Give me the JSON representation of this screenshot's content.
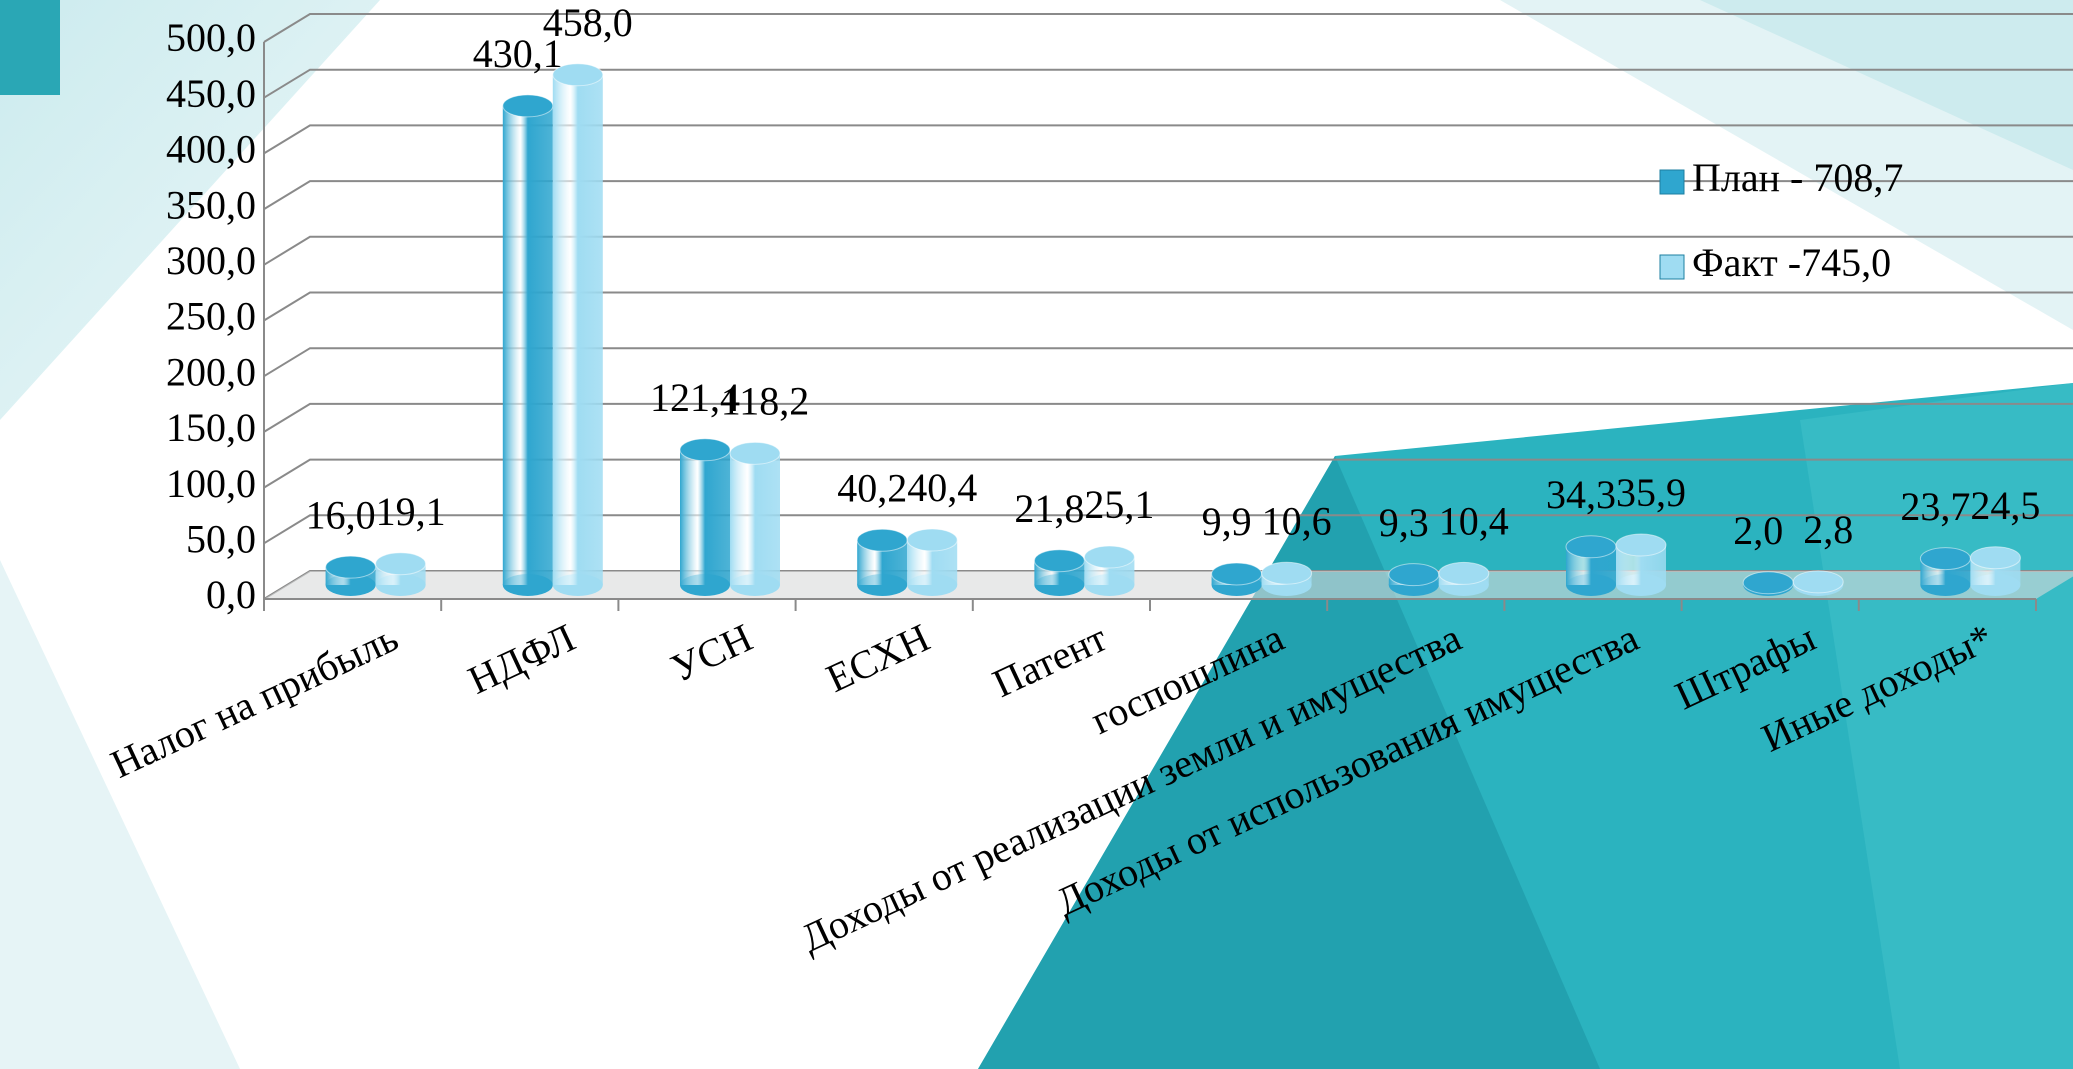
{
  "chart_data": {
    "type": "bar",
    "categories": [
      "Налог на прибыль",
      "НДФЛ",
      "УСН",
      "ЕСХН",
      "Патент",
      "госпошлина",
      "Доходы от реализации земли и имущества",
      "Доходы от использования имущества",
      "Штрафы",
      "Иные доходы*"
    ],
    "series": [
      {
        "name": "План - 708,7",
        "color": "#2fa6cf",
        "values": [
          16.0,
          430.1,
          121.4,
          40.2,
          21.8,
          9.9,
          9.3,
          34.3,
          2.0,
          23.7
        ],
        "value_labels": [
          "16,0",
          "430,1",
          "121,4",
          "40,2",
          "21,8",
          "9,9",
          "9,3",
          "34,3",
          "2,0",
          "23,7"
        ]
      },
      {
        "name": "Факт -745,0",
        "color": "#9fdcf2",
        "values": [
          19.1,
          458.0,
          118.2,
          40.4,
          25.1,
          10.6,
          10.4,
          35.9,
          2.8,
          24.5
        ],
        "value_labels": [
          "19,1",
          "458,0",
          "118,2",
          "40,4",
          "25,1",
          "10,6",
          "10,4",
          "35,9",
          "2,8",
          "24,5"
        ]
      }
    ],
    "ylim": [
      0,
      500
    ],
    "yticks": [
      {
        "value": 0,
        "label": "0,0"
      },
      {
        "value": 50,
        "label": "50,0"
      },
      {
        "value": 100,
        "label": "100,0"
      },
      {
        "value": 150,
        "label": "150,0"
      },
      {
        "value": 200,
        "label": "200,0"
      },
      {
        "value": 250,
        "label": "250,0"
      },
      {
        "value": 300,
        "label": "300,0"
      },
      {
        "value": 350,
        "label": "350,0"
      },
      {
        "value": 400,
        "label": "400,0"
      },
      {
        "value": 450,
        "label": "450,0"
      },
      {
        "value": 500,
        "label": "500,0"
      }
    ],
    "grid": true,
    "legend": "right"
  }
}
